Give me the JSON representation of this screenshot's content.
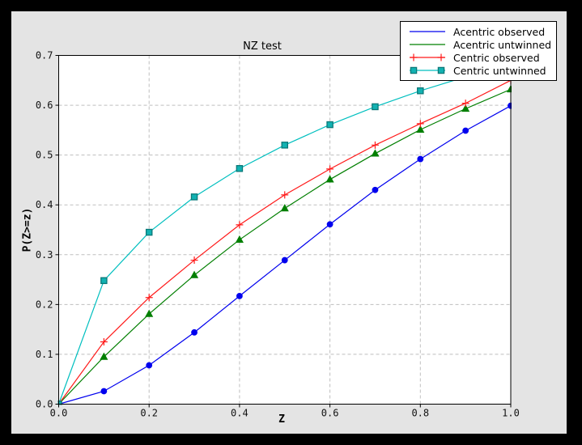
{
  "window": {
    "outer_background": "#000000",
    "figure_background": "#e4e4e4",
    "plot_background": "#ffffff",
    "grid_color": "#bfbfbf"
  },
  "chart_data": {
    "type": "line",
    "title": "NZ test",
    "xlabel": "Z",
    "ylabel": "P(Z>=z)",
    "xlim": [
      0.0,
      1.0
    ],
    "ylim": [
      0.0,
      0.7
    ],
    "xticks": [
      0.0,
      0.2,
      0.4,
      0.6,
      0.8,
      1.0
    ],
    "yticks": [
      0.0,
      0.1,
      0.2,
      0.3,
      0.4,
      0.5,
      0.6,
      0.7
    ],
    "grid": true,
    "legend_position": "upper right",
    "x": [
      0.0,
      0.1,
      0.2,
      0.3,
      0.4,
      0.5,
      0.6,
      0.7,
      0.8,
      0.9,
      1.0
    ],
    "series": [
      {
        "name": "Acentric observed",
        "color": "#0000ee",
        "marker": "circle",
        "legend_marker": false,
        "values": [
          0.0,
          0.026,
          0.078,
          0.144,
          0.217,
          0.289,
          0.361,
          0.43,
          0.492,
          0.549,
          0.599
        ]
      },
      {
        "name": "Acentric untwinned",
        "color": "#007f00",
        "marker": "triangle",
        "legend_marker": false,
        "values": [
          0.0,
          0.095,
          0.181,
          0.259,
          0.33,
          0.393,
          0.451,
          0.503,
          0.551,
          0.593,
          0.632
        ]
      },
      {
        "name": "Centric observed",
        "color": "#ff1a1a",
        "marker": "plus",
        "legend_marker": true,
        "values": [
          0.0,
          0.125,
          0.214,
          0.289,
          0.36,
          0.42,
          0.472,
          0.52,
          0.563,
          0.604,
          0.65
        ]
      },
      {
        "name": "Centric untwinned",
        "color": "#00bfbf",
        "marker": "square",
        "marker_fill": "#12b2b2",
        "marker_edge": "#0b7878",
        "legend_marker": true,
        "values": [
          0.0,
          0.248,
          0.345,
          0.416,
          0.473,
          0.52,
          0.561,
          0.597,
          0.629,
          0.657,
          0.683
        ]
      }
    ]
  }
}
